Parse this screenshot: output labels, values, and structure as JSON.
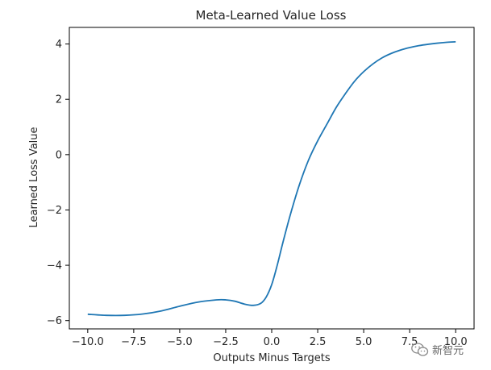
{
  "chart_data": {
    "type": "line",
    "title": "Meta-Learned Value Loss",
    "xlabel": "Outputs Minus Targets",
    "ylabel": "Learned Loss Value",
    "xlim": [
      -11.0,
      11.0
    ],
    "ylim": [
      -6.3,
      4.6
    ],
    "xticks": [
      -10.0,
      -7.5,
      -5.0,
      -2.5,
      0.0,
      2.5,
      5.0,
      7.5,
      10.0
    ],
    "xtick_labels": [
      "−10.0",
      "−7.5",
      "−5.0",
      "−2.5",
      "0.0",
      "2.5",
      "5.0",
      "7.5",
      "10.0"
    ],
    "yticks": [
      -6,
      -4,
      -2,
      0,
      2,
      4
    ],
    "ytick_labels": [
      "−6",
      "−4",
      "−2",
      "0",
      "2",
      "4"
    ],
    "grid": false,
    "series": [
      {
        "color": "#1f77b4",
        "x": [
          -10.0,
          -9.0,
          -8.0,
          -7.0,
          -6.0,
          -5.0,
          -4.0,
          -3.0,
          -2.5,
          -2.0,
          -1.5,
          -1.0,
          -0.6,
          -0.3,
          0.0,
          0.3,
          0.6,
          1.0,
          1.5,
          2.0,
          2.5,
          3.0,
          3.5,
          4.0,
          4.5,
          5.0,
          5.5,
          6.0,
          6.5,
          7.0,
          7.5,
          8.0,
          8.5,
          9.0,
          9.5,
          10.0
        ],
        "y": [
          -5.77,
          -5.81,
          -5.81,
          -5.76,
          -5.65,
          -5.48,
          -5.33,
          -5.25,
          -5.25,
          -5.3,
          -5.4,
          -5.45,
          -5.38,
          -5.15,
          -4.7,
          -4.0,
          -3.2,
          -2.2,
          -1.1,
          -0.2,
          0.5,
          1.1,
          1.7,
          2.2,
          2.65,
          3.0,
          3.28,
          3.5,
          3.66,
          3.78,
          3.87,
          3.94,
          3.99,
          4.03,
          4.06,
          4.08
        ]
      }
    ]
  },
  "watermark": {
    "text": "新智元",
    "icon": "wechat-icon"
  }
}
